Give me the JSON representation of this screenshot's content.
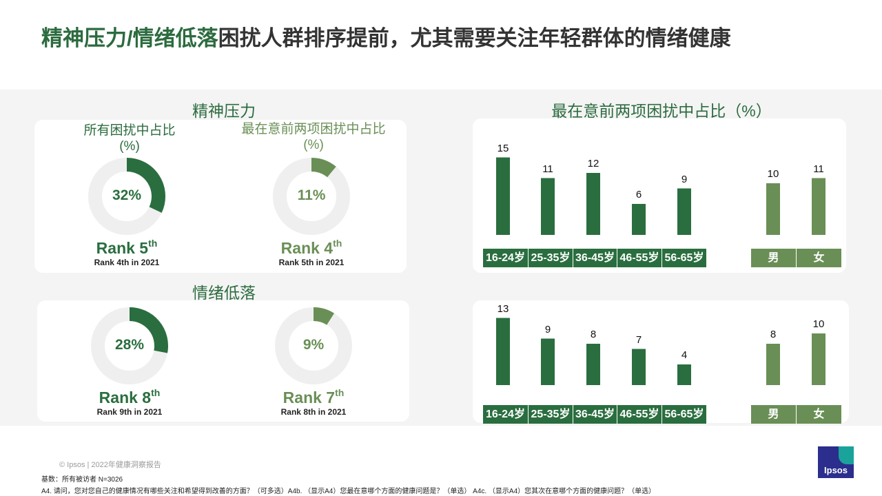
{
  "title": {
    "highlight": "精神压力/情绪低落",
    "rest": "困扰人群排序提前，尤其需要关注年轻群体的情绪健康"
  },
  "colors": {
    "dark_green": "#2a6e3f",
    "light_green": "#6a8f56",
    "ring_gray": "#efefef"
  },
  "sections": [
    {
      "title": "精神压力",
      "right_title": "最在意前两项困扰中占比（%）",
      "donuts": [
        {
          "label": "所有困扰中占比\n(%)",
          "value": 32,
          "pct_text": "32%",
          "rank_main": "Rank 5",
          "rank_sup": "th",
          "rank_sub": "Rank 4th in 2021",
          "tone": "dark"
        },
        {
          "label": "最在意前两项困扰中占比\n(%)",
          "value": 11,
          "pct_text": "11%",
          "rank_main": "Rank 4",
          "rank_sup": "th",
          "rank_sub": "Rank 5th in 2021",
          "tone": "light"
        }
      ]
    },
    {
      "title": "情绪低落",
      "right_title": "",
      "donuts": [
        {
          "label": "",
          "value": 28,
          "pct_text": "28%",
          "rank_main": "Rank 8",
          "rank_sup": "th",
          "rank_sub": "Rank 9th in 2021",
          "tone": "dark"
        },
        {
          "label": "",
          "value": 9,
          "pct_text": "9%",
          "rank_main": "Rank 7",
          "rank_sup": "th",
          "rank_sub": "Rank 8th in 2021",
          "tone": "light"
        }
      ]
    }
  ],
  "chart_data": [
    {
      "type": "bar",
      "title": "最在意前两项困扰中占比（%）",
      "categories": [
        "16-24岁",
        "25-35岁",
        "36-45岁",
        "46-55岁",
        "56-65岁",
        "男",
        "女"
      ],
      "values": [
        15,
        11,
        12,
        6,
        9,
        10,
        11
      ],
      "ylim": [
        0,
        15
      ]
    },
    {
      "type": "bar",
      "categories": [
        "16-24岁",
        "25-35岁",
        "36-45岁",
        "46-55岁",
        "56-65岁",
        "男",
        "女"
      ],
      "values": [
        13,
        9,
        8,
        7,
        4,
        8,
        10
      ],
      "ylim": [
        0,
        13
      ]
    }
  ],
  "footer": {
    "copyright": "© Ipsos | 2022年健康洞察报告",
    "base": "基数：所有被访者  N=3026",
    "question": "A4. 请问，您对您自己的健康情况有哪些关注和希望得到改善的方面？（可多选）A4b. （显示A4）您最在意哪个方面的健康问题是？（单选） A4c. （显示A4）您其次在意哪个方面的健康问题？（单选）",
    "logo_text": "Ipsos"
  }
}
